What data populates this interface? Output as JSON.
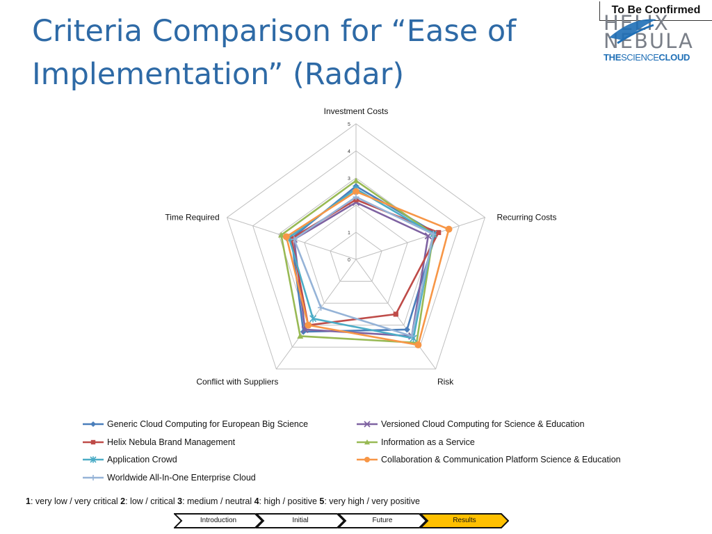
{
  "page": {
    "title": "Criteria Comparison for “Ease of Implementation” (Radar)",
    "badge": "To Be Confirmed"
  },
  "logo": {
    "line1": "HELIX",
    "line2": "NEBULA",
    "tag_a": "THE",
    "tag_b": "SCIENCE",
    "tag_c": "CLOUD",
    "colors": {
      "text_gray": "#7a7f88",
      "blue": "#1f6fb6"
    }
  },
  "chart_data": {
    "type": "radar",
    "axes": [
      "Investment Costs",
      "Recurring Costs",
      "Risk",
      "Conflict with Suppliers",
      "Time Required"
    ],
    "rlim": [
      0,
      5
    ],
    "ticks": [
      "0",
      "1",
      "2",
      "3",
      "4",
      "5"
    ],
    "grid": true,
    "legend_position": "bottom",
    "series": [
      {
        "name": "Generic Cloud Computing for European Big Science",
        "values": [
          2.7,
          3.1,
          3.2,
          3.3,
          2.5
        ],
        "color": "#4a7ebb",
        "marker": "diamond"
      },
      {
        "name": "Versioned Cloud Computing for Science & Education",
        "values": [
          2.1,
          2.8,
          3.5,
          3.2,
          2.4
        ],
        "color": "#7e62a1",
        "marker": "x"
      },
      {
        "name": "Helix Nebula Brand Management",
        "values": [
          2.2,
          3.2,
          2.5,
          3.0,
          2.5
        ],
        "color": "#be4b48",
        "marker": "square"
      },
      {
        "name": "Information as a Service",
        "values": [
          2.9,
          3.0,
          3.8,
          3.5,
          2.9
        ],
        "color": "#98b954",
        "marker": "triangle"
      },
      {
        "name": "Application Crowd",
        "values": [
          2.6,
          3.0,
          3.6,
          2.7,
          2.6
        ],
        "color": "#4bacc6",
        "marker": "star"
      },
      {
        "name": "Collaboration & Communication Platform Science & Education",
        "values": [
          2.5,
          3.6,
          3.9,
          3.0,
          2.7
        ],
        "color": "#f79646",
        "marker": "circle"
      },
      {
        "name": "Worldwide All-In-One Enterprise Cloud",
        "values": [
          2.3,
          3.0,
          3.5,
          2.2,
          2.4
        ],
        "color": "#95b3d7",
        "marker": "plus"
      }
    ]
  },
  "note": {
    "parts": [
      {
        "b": "1",
        "t": ": very low / very critical "
      },
      {
        "b": "2",
        "t": ": low / critical "
      },
      {
        "b": "3",
        "t": ": medium / neutral "
      },
      {
        "b": "4",
        "t": ": high / positive "
      },
      {
        "b": "5",
        "t": ": very high / very positive"
      }
    ]
  },
  "nav": {
    "steps": [
      {
        "label": "Introduction",
        "active": false
      },
      {
        "label": "Initial",
        "active": false
      },
      {
        "label": "Future",
        "active": false
      },
      {
        "label": "Results",
        "active": true
      }
    ],
    "active_color": "#ffc000"
  }
}
